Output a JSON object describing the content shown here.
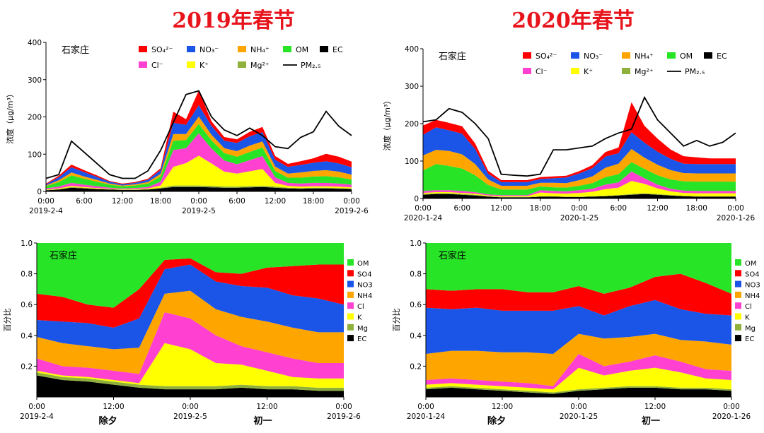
{
  "titles": [
    "2019年春节",
    "2020年春节"
  ],
  "city": "石家庄",
  "top_ylabel": "浓度（μg/m³）",
  "bottom_ylabel": "百分比",
  "top_legend": [
    "SO₄²⁻",
    "NO₃⁻",
    "NH₄⁺",
    "OM",
    "EC",
    "Cl⁻",
    "K⁺",
    "Mg²⁺",
    "PM₂.₅"
  ],
  "bottom_legend": [
    "OM",
    "SO4",
    "NO3",
    "NH4",
    "Cl",
    "K",
    "Mg",
    "EC"
  ],
  "notes": {
    "eve": "除夕",
    "day1": "初一"
  },
  "colors": {
    "EC": "#000000",
    "Mg": "#8fb03b",
    "K": "#ffff00",
    "Cl": "#ff40d0",
    "NH4": "#ffa500",
    "NO3": "#1a55e8",
    "SO4": "#ff0000",
    "OM": "#27e427",
    "PM": "#000000"
  },
  "chart_data": [
    {
      "type": "area",
      "title": "2019年春节",
      "subtitle": "石家庄",
      "ylabel": "浓度（μg/m³）",
      "ylim": [
        0,
        400
      ],
      "yticks": [
        0,
        100,
        200,
        300,
        400
      ],
      "x_hours": [
        0,
        2,
        4,
        6,
        8,
        10,
        12,
        14,
        16,
        18,
        20,
        22,
        24,
        26,
        28,
        30,
        32,
        34,
        36,
        38,
        40,
        42,
        44,
        46,
        48
      ],
      "xticks": [
        "0:00",
        "6:00",
        "12:00",
        "18:00",
        "0:00",
        "6:00",
        "12:00",
        "18:00",
        "0:00"
      ],
      "xdates": [
        "2019-2-4",
        "2019-2-5",
        "2019-2-6"
      ],
      "stack_order": [
        "EC",
        "Mg",
        "K",
        "Cl",
        "OM",
        "NH4",
        "NO3",
        "SO4"
      ],
      "series": [
        {
          "name": "EC",
          "values": [
            3,
            5,
            10,
            8,
            6,
            5,
            4,
            4,
            5,
            8,
            12,
            12,
            12,
            11,
            10,
            10,
            11,
            12,
            10,
            8,
            7,
            8,
            8,
            7,
            6
          ]
        },
        {
          "name": "Mg",
          "values": [
            1,
            1,
            2,
            2,
            1,
            1,
            1,
            1,
            1,
            2,
            4,
            4,
            4,
            4,
            3,
            3,
            3,
            3,
            3,
            2,
            2,
            2,
            2,
            2,
            2
          ]
        },
        {
          "name": "K",
          "values": [
            1,
            2,
            3,
            2,
            2,
            1,
            1,
            1,
            2,
            6,
            50,
            60,
            80,
            60,
            40,
            35,
            40,
            45,
            10,
            5,
            4,
            4,
            4,
            4,
            3
          ]
        },
        {
          "name": "Cl",
          "values": [
            3,
            5,
            8,
            6,
            5,
            3,
            2,
            3,
            4,
            10,
            45,
            40,
            60,
            40,
            30,
            25,
            30,
            35,
            15,
            8,
            8,
            9,
            9,
            8,
            7
          ]
        },
        {
          "name": "OM",
          "values": [
            6,
            12,
            20,
            16,
            12,
            8,
            6,
            7,
            9,
            14,
            25,
            22,
            25,
            22,
            20,
            20,
            22,
            23,
            17,
            14,
            16,
            17,
            18,
            17,
            14
          ]
        },
        {
          "name": "NH4",
          "values": [
            2,
            5,
            8,
            6,
            5,
            3,
            2,
            3,
            4,
            7,
            18,
            16,
            20,
            15,
            13,
            15,
            17,
            16,
            12,
            11,
            14,
            15,
            16,
            15,
            13
          ]
        },
        {
          "name": "NO3",
          "values": [
            3,
            8,
            14,
            12,
            8,
            5,
            3,
            4,
            6,
            10,
            30,
            25,
            30,
            24,
            20,
            22,
            25,
            25,
            18,
            18,
            20,
            22,
            24,
            22,
            20
          ]
        },
        {
          "name": "SO4",
          "values": [
            2,
            4,
            7,
            5,
            4,
            2,
            2,
            2,
            3,
            5,
            30,
            15,
            40,
            12,
            10,
            10,
            12,
            14,
            10,
            8,
            10,
            12,
            20,
            18,
            15
          ]
        }
      ],
      "line": {
        "name": "PM₂.₅",
        "values": [
          35,
          45,
          135,
          105,
          75,
          45,
          35,
          35,
          55,
          110,
          185,
          260,
          270,
          200,
          165,
          150,
          170,
          150,
          120,
          115,
          145,
          160,
          215,
          175,
          150
        ]
      }
    },
    {
      "type": "area",
      "title": "2020年春节",
      "subtitle": "石家庄",
      "ylabel": "浓度（μg/m³）",
      "ylim": [
        0,
        400
      ],
      "yticks": [
        0,
        100,
        200,
        300,
        400
      ],
      "x_hours": [
        0,
        2,
        4,
        6,
        8,
        10,
        12,
        14,
        16,
        18,
        20,
        22,
        24,
        26,
        28,
        30,
        32,
        34,
        36,
        38,
        40,
        42,
        44,
        46,
        48
      ],
      "xticks": [
        "0:00",
        "6:00",
        "12:00",
        "18:00",
        "0:00",
        "6:00",
        "12:00",
        "18:00",
        "0:00"
      ],
      "xdates": [
        "2020-1-24",
        "2020-1-25",
        "2020-1-26"
      ],
      "stack_order": [
        "EC",
        "Mg",
        "K",
        "Cl",
        "OM",
        "NH4",
        "NO3",
        "SO4"
      ],
      "series": [
        {
          "name": "EC",
          "values": [
            10,
            12,
            12,
            10,
            8,
            5,
            3,
            3,
            3,
            5,
            5,
            4,
            4,
            5,
            6,
            8,
            10,
            12,
            10,
            8,
            6,
            5,
            5,
            5,
            5
          ]
        },
        {
          "name": "Mg",
          "values": [
            2,
            2,
            2,
            2,
            2,
            1,
            1,
            1,
            1,
            1,
            1,
            1,
            1,
            1,
            1,
            1,
            2,
            2,
            2,
            1,
            1,
            1,
            1,
            1,
            1
          ]
        },
        {
          "name": "K",
          "values": [
            3,
            3,
            3,
            3,
            3,
            2,
            2,
            2,
            2,
            10,
            8,
            8,
            10,
            12,
            18,
            20,
            35,
            25,
            15,
            10,
            8,
            8,
            8,
            8,
            8
          ]
        },
        {
          "name": "Cl",
          "values": [
            5,
            5,
            5,
            5,
            4,
            3,
            3,
            3,
            3,
            6,
            6,
            6,
            7,
            8,
            12,
            14,
            25,
            15,
            10,
            7,
            6,
            6,
            6,
            6,
            6
          ]
        },
        {
          "name": "OM",
          "values": [
            55,
            70,
            65,
            60,
            45,
            25,
            15,
            15,
            15,
            10,
            10,
            10,
            12,
            15,
            20,
            22,
            25,
            25,
            25,
            25,
            25,
            25,
            25,
            25,
            25
          ]
        },
        {
          "name": "NH4",
          "values": [
            40,
            38,
            40,
            38,
            30,
            15,
            10,
            10,
            10,
            10,
            12,
            12,
            15,
            18,
            25,
            28,
            35,
            30,
            28,
            25,
            22,
            22,
            22,
            22,
            22
          ]
        },
        {
          "name": "NO3",
          "values": [
            55,
            60,
            55,
            55,
            40,
            15,
            10,
            10,
            10,
            10,
            12,
            15,
            18,
            22,
            30,
            28,
            45,
            40,
            35,
            30,
            25,
            25,
            25,
            25,
            25
          ]
        },
        {
          "name": "SO4",
          "values": [
            25,
            20,
            20,
            20,
            15,
            8,
            5,
            5,
            5,
            5,
            5,
            5,
            6,
            8,
            12,
            15,
            80,
            45,
            35,
            25,
            20,
            18,
            15,
            15,
            15
          ]
        }
      ],
      "line": {
        "name": "PM₂.₅",
        "values": [
          205,
          210,
          240,
          230,
          200,
          160,
          65,
          62,
          60,
          65,
          130,
          130,
          135,
          140,
          160,
          175,
          185,
          270,
          210,
          175,
          140,
          155,
          140,
          150,
          175
        ]
      }
    },
    {
      "type": "area",
      "title": "石家庄",
      "ylabel": "百分比",
      "ylim": [
        0,
        1
      ],
      "yticks": [
        0.2,
        0.4,
        0.6,
        0.8,
        1.0
      ],
      "x_hours": [
        0,
        4,
        8,
        12,
        16,
        20,
        24,
        28,
        32,
        36,
        40,
        44,
        48
      ],
      "xticks": [
        "0:00",
        "12:00",
        "0:00",
        "12:00",
        "0:00"
      ],
      "xdates": [
        "2019-2-4",
        "2019-2-5",
        "2019-2-6"
      ],
      "stack_order": [
        "EC",
        "Mg",
        "K",
        "Cl",
        "NH4",
        "NO3",
        "SO4",
        "OM"
      ],
      "series": [
        {
          "name": "EC",
          "values": [
            0.14,
            0.11,
            0.1,
            0.08,
            0.06,
            0.05,
            0.05,
            0.05,
            0.06,
            0.05,
            0.05,
            0.04,
            0.04
          ]
        },
        {
          "name": "Mg",
          "values": [
            0.02,
            0.02,
            0.02,
            0.02,
            0.02,
            0.02,
            0.02,
            0.02,
            0.02,
            0.02,
            0.02,
            0.02,
            0.02
          ]
        },
        {
          "name": "K",
          "values": [
            0.01,
            0.01,
            0.01,
            0.01,
            0.01,
            0.28,
            0.24,
            0.15,
            0.13,
            0.1,
            0.06,
            0.06,
            0.06
          ]
        },
        {
          "name": "Cl",
          "values": [
            0.08,
            0.06,
            0.06,
            0.06,
            0.06,
            0.2,
            0.2,
            0.18,
            0.12,
            0.12,
            0.12,
            0.1,
            0.1
          ]
        },
        {
          "name": "NH4",
          "values": [
            0.14,
            0.15,
            0.14,
            0.14,
            0.17,
            0.12,
            0.18,
            0.17,
            0.19,
            0.2,
            0.2,
            0.2,
            0.2
          ]
        },
        {
          "name": "NO3",
          "values": [
            0.11,
            0.14,
            0.15,
            0.14,
            0.19,
            0.16,
            0.17,
            0.18,
            0.2,
            0.22,
            0.21,
            0.22,
            0.18
          ]
        },
        {
          "name": "SO4",
          "values": [
            0.17,
            0.16,
            0.12,
            0.13,
            0.19,
            0.06,
            0.04,
            0.06,
            0.08,
            0.13,
            0.19,
            0.22,
            0.26
          ]
        },
        {
          "name": "OM",
          "values": [
            0.33,
            0.35,
            0.4,
            0.42,
            0.3,
            0.11,
            0.1,
            0.19,
            0.2,
            0.16,
            0.15,
            0.14,
            0.14
          ]
        }
      ]
    },
    {
      "type": "area",
      "title": "石家庄",
      "ylabel": "百分比",
      "ylim": [
        0,
        1
      ],
      "yticks": [
        0.2,
        0.4,
        0.6,
        0.8,
        1.0
      ],
      "x_hours": [
        0,
        4,
        8,
        12,
        16,
        20,
        24,
        28,
        32,
        36,
        40,
        44,
        48
      ],
      "xticks": [
        "0:00",
        "12:00",
        "0:00",
        "12:00",
        "0:00"
      ],
      "xdates": [
        "2020-1-24",
        "2020-1-25",
        "2020-1-26"
      ],
      "stack_order": [
        "EC",
        "Mg",
        "K",
        "Cl",
        "NH4",
        "NO3",
        "SO4",
        "OM"
      ],
      "series": [
        {
          "name": "EC",
          "values": [
            0.05,
            0.06,
            0.05,
            0.04,
            0.03,
            0.02,
            0.04,
            0.05,
            0.06,
            0.06,
            0.05,
            0.05,
            0.04
          ]
        },
        {
          "name": "Mg",
          "values": [
            0.01,
            0.01,
            0.01,
            0.01,
            0.01,
            0.01,
            0.01,
            0.01,
            0.01,
            0.01,
            0.01,
            0.01,
            0.01
          ]
        },
        {
          "name": "K",
          "values": [
            0.02,
            0.02,
            0.02,
            0.02,
            0.02,
            0.02,
            0.14,
            0.08,
            0.1,
            0.12,
            0.1,
            0.06,
            0.06
          ]
        },
        {
          "name": "Cl",
          "values": [
            0.03,
            0.03,
            0.03,
            0.03,
            0.03,
            0.02,
            0.09,
            0.06,
            0.06,
            0.08,
            0.07,
            0.06,
            0.06
          ]
        },
        {
          "name": "NH4",
          "values": [
            0.17,
            0.18,
            0.19,
            0.19,
            0.2,
            0.21,
            0.13,
            0.18,
            0.16,
            0.14,
            0.14,
            0.18,
            0.17
          ]
        },
        {
          "name": "NO3",
          "values": [
            0.3,
            0.27,
            0.28,
            0.27,
            0.27,
            0.28,
            0.18,
            0.15,
            0.2,
            0.22,
            0.2,
            0.18,
            0.19
          ]
        },
        {
          "name": "SO4",
          "values": [
            0.12,
            0.12,
            0.12,
            0.14,
            0.12,
            0.12,
            0.13,
            0.14,
            0.12,
            0.15,
            0.23,
            0.2,
            0.14
          ]
        },
        {
          "name": "OM",
          "values": [
            0.3,
            0.31,
            0.3,
            0.3,
            0.32,
            0.32,
            0.28,
            0.33,
            0.29,
            0.22,
            0.2,
            0.26,
            0.33
          ]
        }
      ]
    }
  ]
}
